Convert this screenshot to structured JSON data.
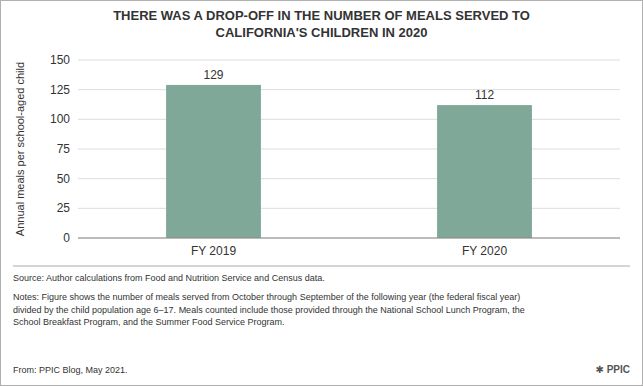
{
  "chart_data": {
    "type": "bar",
    "title": "THERE WAS A DROP-OFF IN THE NUMBER OF MEALS SERVED TO\nCALIFORNIA'S CHILDREN IN 2020",
    "categories": [
      "FY 2019",
      "FY 2020"
    ],
    "values": [
      129,
      112
    ],
    "color": "#7fa898",
    "ylabel": "Annual meals per school-aged child",
    "ylim": [
      0,
      150
    ],
    "yticks": [
      0,
      25,
      50,
      75,
      100,
      125,
      150
    ],
    "grid": true,
    "data_labels": true,
    "annotations": [
      "Source: Author calculations from Food and Nutrition Service and Census data.",
      "Notes: Figure shows the number of meals served from October through September of the following year (the federal fiscal year)\ndivided by the child population age 6–17. Meals counted include those provided through the National School Lunch Program, the\nSchool Breakfast Program, and the Summer Food Service Program.",
      "From: PPIC Blog, May 2021.",
      "✱ PPIC"
    ]
  }
}
